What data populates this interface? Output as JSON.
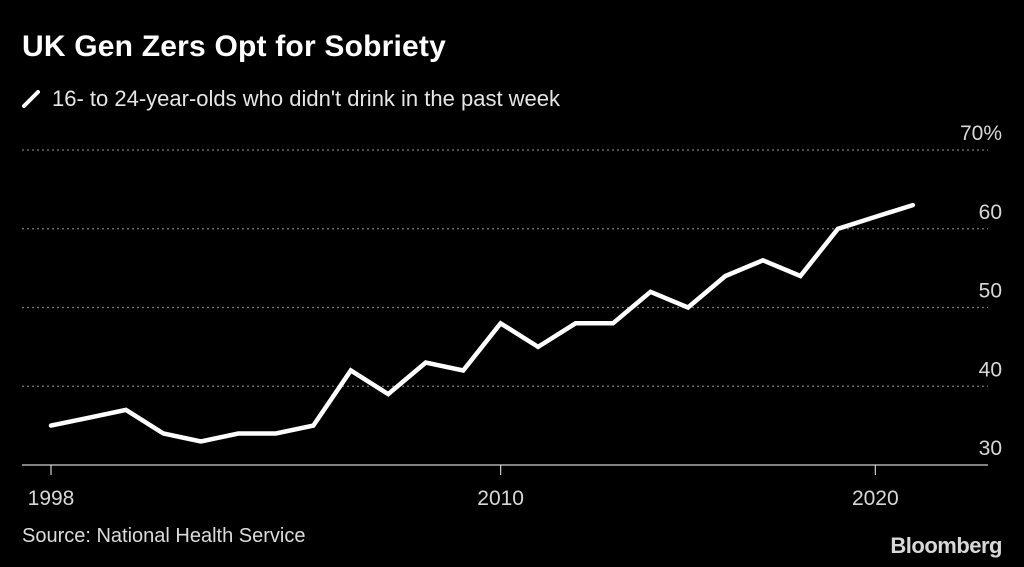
{
  "title": "UK Gen Zers Opt for Sobriety",
  "source": "Source: National Health Service",
  "brand": "Bloomberg",
  "colors": {
    "background": "#000000",
    "line": "#ffffff",
    "grid": "#7a7a7a",
    "text": "#d8d8d8"
  },
  "chart_data": {
    "type": "line",
    "title": "UK Gen Zers Opt for Sobriety",
    "series": [
      {
        "name": "16- to 24-year-olds who didn't drink in the past week",
        "x": [
          1998,
          1999,
          2000,
          2001,
          2002,
          2003,
          2004,
          2005,
          2006,
          2007,
          2008,
          2009,
          2010,
          2011,
          2012,
          2013,
          2014,
          2015,
          2016,
          2017,
          2018,
          2019,
          2020,
          2021
        ],
        "values": [
          35,
          36,
          37,
          34,
          33,
          34,
          34,
          35,
          42,
          39,
          43,
          42,
          48,
          45,
          48,
          48,
          52,
          50,
          54,
          56,
          54,
          60,
          61.5,
          63
        ]
      }
    ],
    "xlim": [
      1998,
      2022.5
    ],
    "ylim": [
      30,
      70
    ],
    "x_ticks": [
      1998,
      2010,
      2020
    ],
    "x_tick_labels": [
      "1998",
      "2010",
      "2020"
    ],
    "y_ticks": [
      30,
      40,
      50,
      60,
      70
    ],
    "y_tick_labels": [
      "30",
      "40",
      "50",
      "60",
      "70%"
    ],
    "grid": "horizontal dotted",
    "y_axis_position": "right",
    "legend_position": "top-left"
  }
}
